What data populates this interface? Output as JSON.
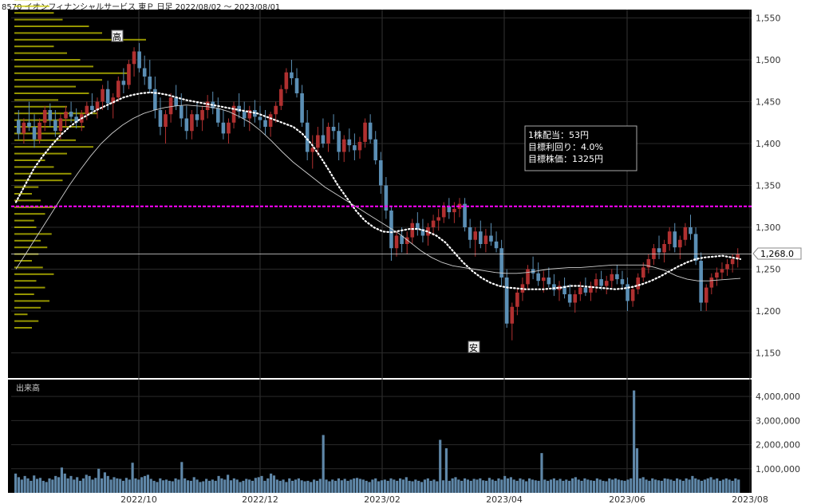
{
  "header": {
    "title": "8570 イオンフィナンシャルサービス 東Ｐ 日足 2022/08/02 ～ 2023/08/01"
  },
  "info_box": {
    "line1": "1株配当：53円",
    "line2": "目標利回り：4.0%",
    "line3": "目標株価：1325円"
  },
  "markers": {
    "high": "高",
    "low": "安"
  },
  "volume_label": "出来高",
  "last_price_label": "1,268.0",
  "colors": {
    "up": "#b03030",
    "down": "#5b8fb5",
    "background": "#000000",
    "target_line": "#ff00ff",
    "ma_short": "#ffffff",
    "ma_long": "#cfcfcf",
    "volume_bar": "#5f87a8",
    "price_profile": "#c8c800"
  },
  "chart_data": {
    "type": "candlestick",
    "price_axis": {
      "ylim": [
        1120,
        1560
      ],
      "ticks": [
        1550,
        1500,
        1450,
        1400,
        1350,
        1300,
        1250,
        1200,
        1150
      ],
      "tick_labels": [
        "1,550",
        "1,500",
        "1,450",
        "1,400",
        "1,350",
        "1,300",
        "1,250",
        "1,200",
        "1,150"
      ]
    },
    "volume_axis": {
      "ylim": [
        0,
        4700000
      ],
      "ticks": [
        4000000,
        3000000,
        2000000,
        1000000
      ],
      "tick_labels": [
        "4,000,000",
        "3,000,000",
        "2,000,000",
        "1,000,000"
      ]
    },
    "x_labels": [
      "2022/10",
      "2022/12",
      "2023/02",
      "2023/04",
      "2023/06",
      "2023/08"
    ],
    "target_price": 1325,
    "last_close": 1268,
    "high_price": 1520,
    "low_price": 1165,
    "candles": [
      [
        1428,
        1440,
        1405,
        1412
      ],
      [
        1412,
        1430,
        1400,
        1425
      ],
      [
        1425,
        1450,
        1415,
        1420
      ],
      [
        1420,
        1435,
        1395,
        1405
      ],
      [
        1405,
        1430,
        1400,
        1425
      ],
      [
        1425,
        1445,
        1415,
        1440
      ],
      [
        1440,
        1448,
        1420,
        1428
      ],
      [
        1428,
        1440,
        1408,
        1415
      ],
      [
        1415,
        1435,
        1405,
        1430
      ],
      [
        1430,
        1445,
        1420,
        1438
      ],
      [
        1438,
        1450,
        1425,
        1432
      ],
      [
        1432,
        1442,
        1418,
        1425
      ],
      [
        1425,
        1440,
        1415,
        1435
      ],
      [
        1435,
        1450,
        1428,
        1445
      ],
      [
        1445,
        1460,
        1435,
        1440
      ],
      [
        1440,
        1455,
        1430,
        1450
      ],
      [
        1450,
        1470,
        1440,
        1465
      ],
      [
        1465,
        1475,
        1440,
        1448
      ],
      [
        1448,
        1460,
        1430,
        1455
      ],
      [
        1455,
        1480,
        1450,
        1475
      ],
      [
        1475,
        1490,
        1460,
        1470
      ],
      [
        1470,
        1500,
        1465,
        1495
      ],
      [
        1495,
        1515,
        1480,
        1510
      ],
      [
        1510,
        1520,
        1485,
        1490
      ],
      [
        1490,
        1505,
        1470,
        1480
      ],
      [
        1480,
        1500,
        1460,
        1465
      ],
      [
        1465,
        1480,
        1430,
        1440
      ],
      [
        1440,
        1455,
        1410,
        1420
      ],
      [
        1420,
        1440,
        1400,
        1435
      ],
      [
        1435,
        1460,
        1425,
        1455
      ],
      [
        1455,
        1470,
        1440,
        1445
      ],
      [
        1445,
        1460,
        1420,
        1430
      ],
      [
        1430,
        1445,
        1405,
        1415
      ],
      [
        1415,
        1440,
        1405,
        1435
      ],
      [
        1435,
        1450,
        1420,
        1428
      ],
      [
        1428,
        1445,
        1415,
        1440
      ],
      [
        1440,
        1458,
        1430,
        1450
      ],
      [
        1450,
        1462,
        1435,
        1442
      ],
      [
        1442,
        1455,
        1420,
        1425
      ],
      [
        1425,
        1440,
        1405,
        1412
      ],
      [
        1412,
        1430,
        1400,
        1425
      ],
      [
        1425,
        1450,
        1418,
        1445
      ],
      [
        1445,
        1460,
        1430,
        1438
      ],
      [
        1438,
        1450,
        1420,
        1430
      ],
      [
        1430,
        1445,
        1415,
        1440
      ],
      [
        1440,
        1452,
        1425,
        1432
      ],
      [
        1432,
        1445,
        1418,
        1428
      ],
      [
        1428,
        1440,
        1410,
        1420
      ],
      [
        1420,
        1438,
        1408,
        1435
      ],
      [
        1435,
        1450,
        1425,
        1445
      ],
      [
        1445,
        1470,
        1440,
        1465
      ],
      [
        1465,
        1490,
        1460,
        1485
      ],
      [
        1485,
        1500,
        1470,
        1478
      ],
      [
        1478,
        1490,
        1455,
        1460
      ],
      [
        1460,
        1470,
        1420,
        1425
      ],
      [
        1425,
        1440,
        1380,
        1390
      ],
      [
        1390,
        1410,
        1370,
        1395
      ],
      [
        1395,
        1420,
        1385,
        1410
      ],
      [
        1410,
        1430,
        1395,
        1400
      ],
      [
        1400,
        1425,
        1390,
        1420
      ],
      [
        1420,
        1435,
        1405,
        1415
      ],
      [
        1415,
        1425,
        1380,
        1390
      ],
      [
        1390,
        1410,
        1378,
        1405
      ],
      [
        1405,
        1418,
        1390,
        1398
      ],
      [
        1398,
        1412,
        1380,
        1392
      ],
      [
        1392,
        1408,
        1382,
        1402
      ],
      [
        1402,
        1430,
        1395,
        1425
      ],
      [
        1425,
        1435,
        1400,
        1405
      ],
      [
        1405,
        1415,
        1375,
        1380
      ],
      [
        1380,
        1390,
        1340,
        1350
      ],
      [
        1350,
        1360,
        1310,
        1320
      ],
      [
        1320,
        1325,
        1260,
        1275
      ],
      [
        1275,
        1295,
        1265,
        1290
      ],
      [
        1290,
        1300,
        1270,
        1280
      ],
      [
        1280,
        1295,
        1268,
        1288
      ],
      [
        1288,
        1310,
        1280,
        1305
      ],
      [
        1305,
        1318,
        1290,
        1298
      ],
      [
        1298,
        1310,
        1282,
        1290
      ],
      [
        1290,
        1305,
        1278,
        1300
      ],
      [
        1300,
        1315,
        1290,
        1308
      ],
      [
        1308,
        1322,
        1296,
        1312
      ],
      [
        1312,
        1330,
        1305,
        1325
      ],
      [
        1325,
        1335,
        1310,
        1318
      ],
      [
        1318,
        1330,
        1305,
        1322
      ],
      [
        1322,
        1335,
        1312,
        1328
      ],
      [
        1328,
        1335,
        1295,
        1300
      ],
      [
        1300,
        1310,
        1275,
        1285
      ],
      [
        1285,
        1300,
        1265,
        1295
      ],
      [
        1295,
        1308,
        1275,
        1280
      ],
      [
        1280,
        1298,
        1270,
        1290
      ],
      [
        1290,
        1305,
        1278,
        1283
      ],
      [
        1283,
        1295,
        1270,
        1275
      ],
      [
        1275,
        1285,
        1230,
        1240
      ],
      [
        1240,
        1250,
        1180,
        1185
      ],
      [
        1185,
        1210,
        1165,
        1205
      ],
      [
        1205,
        1228,
        1195,
        1222
      ],
      [
        1222,
        1240,
        1212,
        1232
      ],
      [
        1232,
        1255,
        1225,
        1250
      ],
      [
        1250,
        1265,
        1238,
        1245
      ],
      [
        1245,
        1258,
        1230,
        1236
      ],
      [
        1236,
        1248,
        1222,
        1240
      ],
      [
        1240,
        1252,
        1228,
        1232
      ],
      [
        1232,
        1244,
        1218,
        1225
      ],
      [
        1225,
        1236,
        1212,
        1230
      ],
      [
        1230,
        1240,
        1215,
        1220
      ],
      [
        1220,
        1232,
        1205,
        1210
      ],
      [
        1210,
        1225,
        1198,
        1220
      ],
      [
        1220,
        1235,
        1212,
        1228
      ],
      [
        1228,
        1240,
        1218,
        1222
      ],
      [
        1222,
        1235,
        1212,
        1230
      ],
      [
        1230,
        1245,
        1222,
        1238
      ],
      [
        1238,
        1248,
        1225,
        1230
      ],
      [
        1230,
        1242,
        1220,
        1236
      ],
      [
        1236,
        1250,
        1228,
        1244
      ],
      [
        1244,
        1255,
        1232,
        1238
      ],
      [
        1238,
        1248,
        1225,
        1232
      ],
      [
        1232,
        1240,
        1200,
        1212
      ],
      [
        1212,
        1230,
        1205,
        1226
      ],
      [
        1226,
        1245,
        1220,
        1240
      ],
      [
        1240,
        1258,
        1235,
        1252
      ],
      [
        1252,
        1268,
        1245,
        1262
      ],
      [
        1262,
        1280,
        1255,
        1275
      ],
      [
        1275,
        1290,
        1262,
        1270
      ],
      [
        1270,
        1285,
        1258,
        1280
      ],
      [
        1280,
        1300,
        1272,
        1295
      ],
      [
        1295,
        1305,
        1270,
        1276
      ],
      [
        1276,
        1290,
        1262,
        1285
      ],
      [
        1285,
        1305,
        1278,
        1300
      ],
      [
        1300,
        1315,
        1285,
        1292
      ],
      [
        1292,
        1300,
        1255,
        1260
      ],
      [
        1260,
        1270,
        1200,
        1210
      ],
      [
        1210,
        1232,
        1200,
        1228
      ],
      [
        1228,
        1245,
        1220,
        1240
      ],
      [
        1240,
        1252,
        1230,
        1246
      ],
      [
        1246,
        1258,
        1238,
        1250
      ],
      [
        1250,
        1262,
        1242,
        1256
      ],
      [
        1256,
        1268,
        1246,
        1262
      ],
      [
        1262,
        1275,
        1252,
        1268
      ]
    ],
    "series": [
      {
        "name": "",
        "values": [
          1330,
          1350,
          1370,
          1385,
          1398,
          1410,
          1420,
          1428,
          1434,
          1440,
          1445,
          1450,
          1455,
          1458,
          1460,
          1461,
          1460,
          1458,
          1455,
          1452,
          1450,
          1448,
          1446,
          1444,
          1442,
          1440,
          1438,
          1436,
          1432,
          1428,
          1424,
          1420,
          1412,
          1400,
          1385,
          1368,
          1350,
          1335,
          1320,
          1308,
          1300,
          1295,
          1294,
          1296,
          1298,
          1298,
          1295,
          1290,
          1282,
          1270,
          1258,
          1248,
          1240,
          1234,
          1230,
          1228,
          1227,
          1226,
          1226,
          1226,
          1227,
          1228,
          1230,
          1230,
          1229,
          1228,
          1227,
          1226,
          1227,
          1229,
          1232,
          1236,
          1241,
          1247,
          1253,
          1258,
          1262,
          1264,
          1265,
          1266,
          1264,
          1262
        ]
      },
      {
        "name": "",
        "values": [
          1250,
          1270,
          1290,
          1310,
          1330,
          1350,
          1368,
          1385,
          1400,
          1412,
          1422,
          1430,
          1436,
          1440,
          1443,
          1445,
          1446,
          1445,
          1444,
          1442,
          1438,
          1432,
          1425,
          1415,
          1403,
          1390,
          1378,
          1368,
          1358,
          1348,
          1340,
          1332,
          1324,
          1316,
          1308,
          1300,
          1292,
          1282,
          1272,
          1264,
          1258,
          1254,
          1252,
          1250,
          1248,
          1246,
          1245,
          1245,
          1246,
          1248,
          1250,
          1251,
          1252,
          1252,
          1253,
          1254,
          1255,
          1255,
          1255,
          1255,
          1252,
          1248,
          1242,
          1238,
          1236,
          1236,
          1237,
          1238,
          1239
        ]
      }
    ],
    "volume": [
      0.8,
      0.65,
      0.55,
      0.7,
      0.6,
      0.5,
      0.72,
      0.58,
      0.62,
      0.5,
      0.45,
      0.6,
      0.55,
      0.7,
      0.65,
      1.05,
      0.8,
      0.6,
      0.7,
      0.55,
      0.65,
      0.5,
      0.6,
      0.75,
      0.7,
      0.55,
      0.62,
      1.0,
      0.6,
      0.85,
      0.7,
      0.55,
      0.65,
      0.6,
      0.58,
      0.5,
      0.62,
      0.55,
      1.25,
      0.6,
      0.55,
      0.65,
      0.7,
      0.75,
      0.58,
      0.5,
      0.45,
      0.6,
      0.52,
      0.55,
      0.5,
      0.48,
      0.6,
      0.55,
      1.28,
      0.6,
      0.52,
      0.5,
      0.65,
      0.55,
      0.45,
      0.48,
      0.58,
      0.5,
      0.55,
      0.5,
      0.7,
      0.6,
      0.55,
      0.75,
      0.52,
      0.6,
      0.55,
      0.45,
      0.5,
      0.58,
      0.55,
      0.5,
      0.62,
      0.65,
      0.7,
      0.5,
      0.6,
      0.8,
      0.72,
      0.55,
      0.5,
      0.55,
      0.45,
      0.6,
      0.5,
      0.55,
      0.6,
      0.52,
      0.48,
      0.5,
      0.45,
      0.55,
      0.5,
      0.58,
      0.6,
      0.55,
      0.48,
      0.55,
      0.5,
      0.6,
      0.52,
      0.58,
      0.5,
      0.55,
      0.6,
      0.62,
      0.58,
      0.55,
      0.5,
      0.45,
      0.55,
      0.6,
      0.48,
      0.52,
      0.55,
      0.5,
      0.6,
      0.55,
      0.5,
      0.6,
      0.55,
      0.65,
      0.5,
      0.48,
      0.55,
      0.5,
      0.45,
      0.55,
      0.6,
      0.5,
      0.55,
      0.48,
      0.6,
      0.52,
      0.55,
      0.5,
      0.6,
      0.65,
      0.55,
      0.5,
      0.6,
      0.55,
      0.5,
      0.58,
      0.55,
      0.6,
      0.52,
      0.5,
      0.62,
      0.55,
      0.5,
      0.6,
      0.55,
      0.7,
      0.6,
      0.65,
      0.55,
      0.5,
      0.6,
      0.55,
      0.48,
      0.6,
      0.55,
      0.52,
      0.5,
      0.6,
      0.55,
      0.5,
      0.55,
      0.6,
      0.52,
      0.58,
      0.5,
      0.55,
      0.5,
      0.6,
      0.65,
      0.55,
      0.5,
      0.6,
      0.55,
      0.52,
      0.5,
      0.6,
      0.55,
      0.5,
      0.48,
      0.6,
      0.55,
      0.6,
      0.55,
      0.52,
      0.5,
      0.55,
      0.6,
      0.55,
      0.5,
      0.6,
      0.65,
      0.55,
      0.5,
      0.6,
      0.55,
      0.52,
      0.5,
      0.6,
      0.58,
      0.55,
      0.5,
      0.6,
      0.55,
      0.5,
      0.6,
      0.55,
      0.7,
      0.6,
      0.55,
      0.5,
      0.55,
      0.6,
      0.65,
      0.55,
      0.6,
      0.5,
      0.55,
      0.6,
      0.55,
      0.5,
      0.6,
      0.55
    ]
  }
}
